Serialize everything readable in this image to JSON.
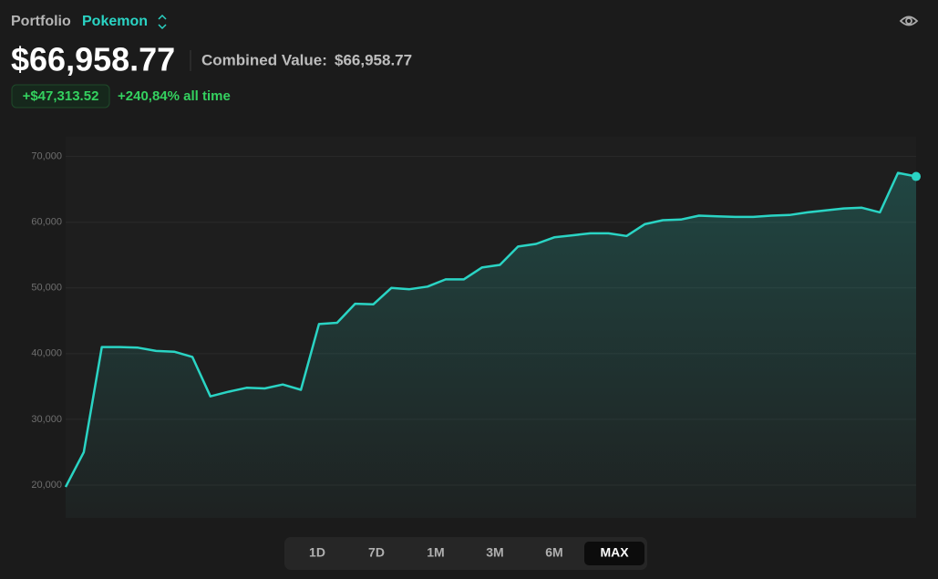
{
  "header": {
    "label": "Portfolio",
    "portfolio_name": "Pokemon",
    "value": "$66,958.77",
    "combined_label": "Combined Value:",
    "combined_value": "$66,958.77",
    "change": "+$47,313.52",
    "change_pct": "+240,84% all time"
  },
  "chart_data": {
    "type": "line",
    "color": "#2ad4c4",
    "values": [
      19700,
      25000,
      41000,
      41000,
      40900,
      40400,
      40300,
      39500,
      33500,
      34200,
      34800,
      34700,
      35300,
      34500,
      44500,
      44700,
      47600,
      47500,
      50000,
      49800,
      50200,
      51300,
      51300,
      53100,
      53500,
      56300,
      56700,
      57700,
      58000,
      58300,
      58300,
      57900,
      59700,
      60300,
      60400,
      61000,
      60900,
      60800,
      60800,
      61000,
      61100,
      61500,
      61800,
      62100,
      62200,
      61500,
      67500,
      66958.77
    ],
    "ylim": [
      15000,
      73000
    ],
    "yticks": [
      {
        "value": 20000,
        "label": "20,000"
      },
      {
        "value": 30000,
        "label": "30,000"
      },
      {
        "value": 40000,
        "label": "40,000"
      },
      {
        "value": 50000,
        "label": "50,000"
      },
      {
        "value": 60000,
        "label": "60,000"
      },
      {
        "value": 70000,
        "label": "70,000"
      }
    ],
    "grid": true
  },
  "ranges": {
    "buttons": [
      "1D",
      "7D",
      "1M",
      "3M",
      "6M",
      "MAX"
    ],
    "active": 5
  }
}
